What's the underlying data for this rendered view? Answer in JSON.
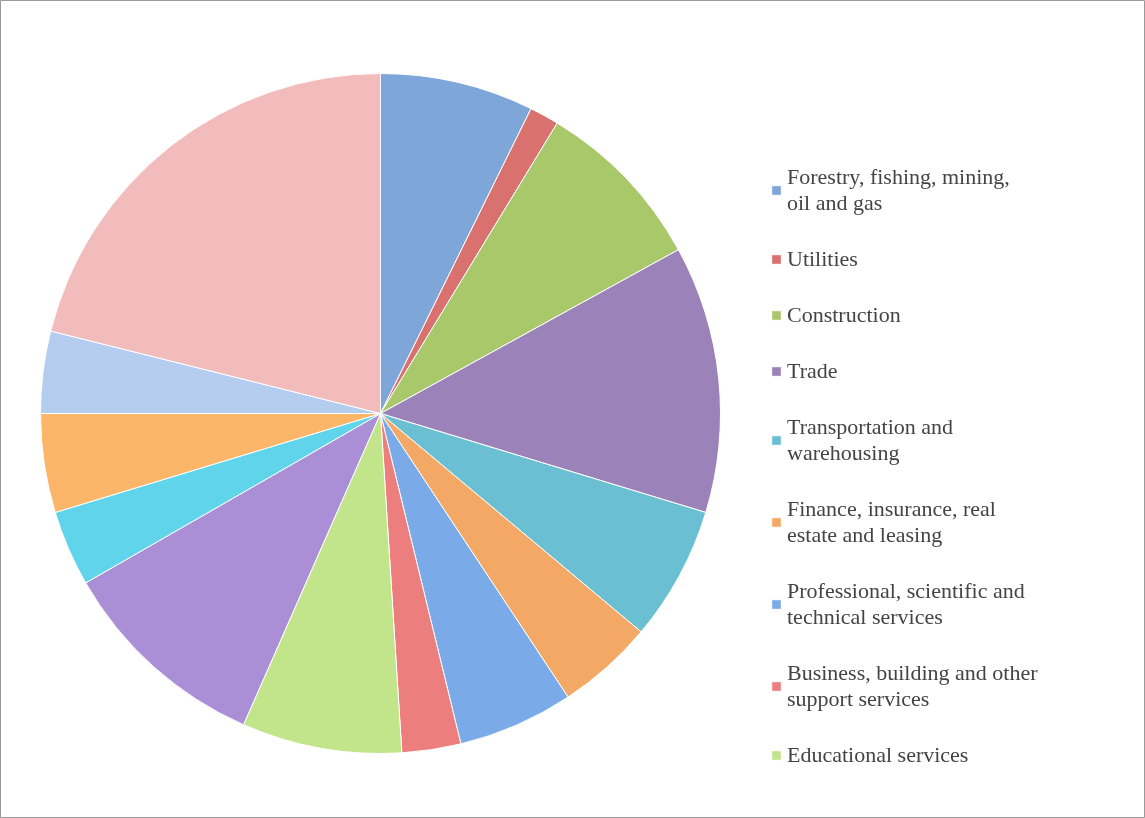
{
  "chart_data": {
    "type": "pie",
    "legend": "right",
    "categories": [
      "Forestry, fishing, mining, oil and gas",
      "Utilities",
      "Construction",
      "Trade",
      "Transportation and warehousing",
      "Finance, insurance, real estate and leasing",
      "Professional, scientific and technical services",
      "Business, building and other support services",
      "Educational services",
      null,
      null,
      null,
      null,
      null
    ],
    "values": [
      7.3,
      1.4,
      8.3,
      12.7,
      6.4,
      4.6,
      5.5,
      2.8,
      7.6,
      10.1,
      3.6,
      4.7,
      3.9,
      21.1
    ],
    "colors": [
      "#7fa6d8",
      "#d9716f",
      "#a9c86a",
      "#9b82b8",
      "#6bbfd3",
      "#f3a866",
      "#7aaae8",
      "#ec7e7e",
      "#c2e48a",
      "#ab8fd6",
      "#5fd4ea",
      "#fbb66a",
      "#b4cdee",
      "#f2bcbc"
    ]
  }
}
